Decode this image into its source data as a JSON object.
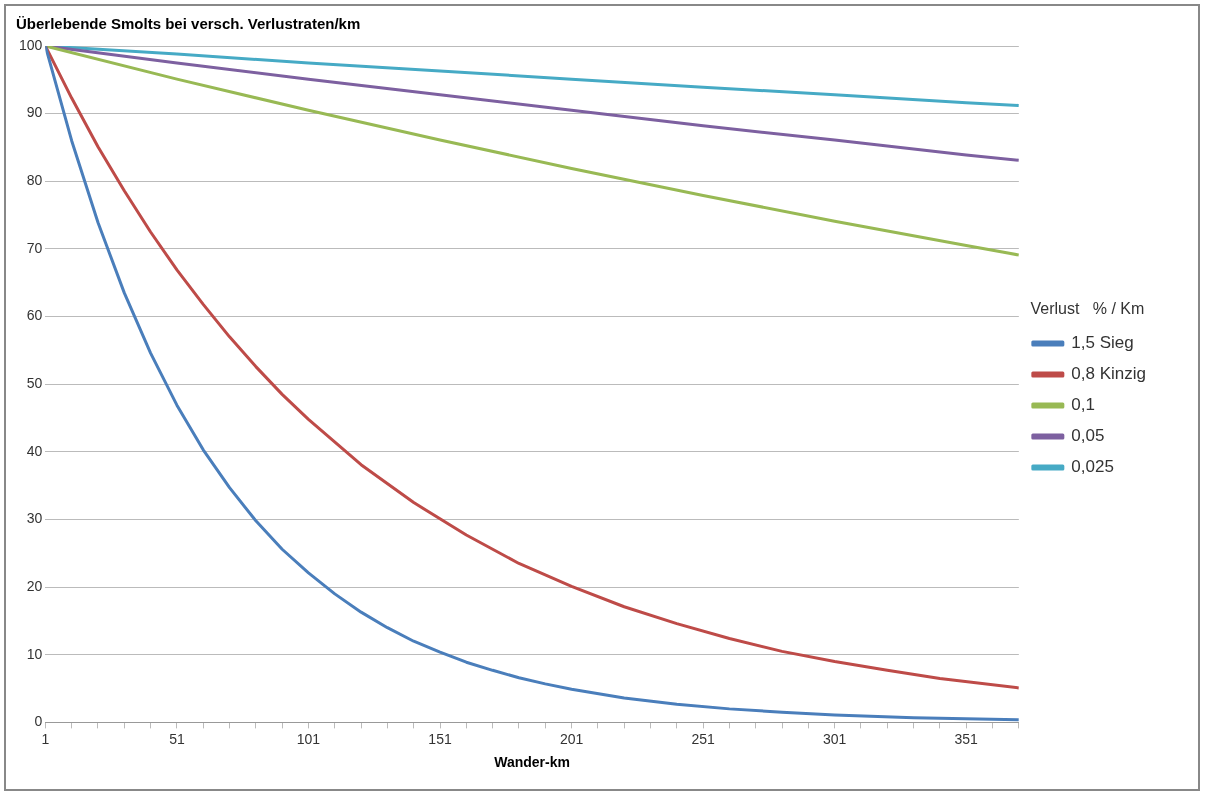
{
  "chart_data": {
    "type": "line",
    "title": "Überlebende Smolts bei versch. Verlustraten/km",
    "xlabel": "Wander-km",
    "xlim": [
      1,
      371
    ],
    "ylim": [
      0,
      100
    ],
    "xticks": [
      1,
      {
        "value": 11,
        "label": null
      },
      {
        "value": 21,
        "label": null
      },
      {
        "value": 31,
        "label": null
      },
      {
        "value": 41,
        "label": null
      },
      51,
      {
        "value": 61,
        "label": null
      },
      {
        "value": 71,
        "label": null
      },
      {
        "value": 81,
        "label": null
      },
      {
        "value": 91,
        "label": null
      },
      101,
      {
        "value": 111,
        "label": null
      },
      {
        "value": 121,
        "label": null
      },
      {
        "value": 131,
        "label": null
      },
      {
        "value": 141,
        "label": null
      },
      151,
      {
        "value": 161,
        "label": null
      },
      {
        "value": 171,
        "label": null
      },
      {
        "value": 181,
        "label": null
      },
      {
        "value": 191,
        "label": null
      },
      201,
      {
        "value": 211,
        "label": null
      },
      {
        "value": 221,
        "label": null
      },
      {
        "value": 231,
        "label": null
      },
      {
        "value": 241,
        "label": null
      },
      251,
      {
        "value": 261,
        "label": null
      },
      {
        "value": 271,
        "label": null
      },
      {
        "value": 281,
        "label": null
      },
      {
        "value": 291,
        "label": null
      },
      301,
      {
        "value": 311,
        "label": null
      },
      {
        "value": 321,
        "label": null
      },
      {
        "value": 331,
        "label": null
      },
      {
        "value": 341,
        "label": null
      },
      351,
      {
        "value": 361,
        "label": null
      },
      {
        "value": 371,
        "label": null
      }
    ],
    "yticks": [
      0,
      10,
      20,
      30,
      40,
      50,
      60,
      70,
      80,
      90,
      100
    ],
    "grid": "y",
    "legend": "right",
    "legend_title": "Verlust   % / Km",
    "marker": "none",
    "line_style": "solid",
    "series": [
      {
        "name": "1,5 Sieg",
        "color": "#4a7ebb",
        "x": [
          1,
          11,
          21,
          31,
          41,
          51,
          61,
          71,
          81,
          91,
          101,
          111,
          121,
          131,
          141,
          151,
          161,
          171,
          181,
          191,
          201,
          221,
          241,
          261,
          281,
          301,
          331,
          371
        ],
        "values": [
          100,
          86.0,
          73.9,
          63.5,
          54.6,
          46.9,
          40.3,
          34.7,
          29.8,
          25.6,
          22.1,
          19.0,
          16.3,
          14.0,
          12.0,
          10.4,
          8.9,
          7.7,
          6.6,
          5.7,
          4.9,
          3.6,
          2.7,
          2.0,
          1.5,
          1.1,
          0.7,
          0.4
        ]
      },
      {
        "name": "0,8 Kinzig",
        "color": "#be4b48",
        "x": [
          1,
          11,
          21,
          31,
          41,
          51,
          61,
          71,
          81,
          91,
          101,
          121,
          141,
          161,
          181,
          201,
          221,
          241,
          261,
          281,
          301,
          321,
          341,
          371
        ],
        "values": [
          100,
          92.3,
          85.1,
          78.6,
          72.5,
          66.9,
          61.8,
          57.0,
          52.6,
          48.5,
          44.8,
          38.1,
          32.5,
          27.7,
          23.5,
          20.1,
          17.1,
          14.6,
          12.4,
          10.5,
          9.0,
          7.7,
          6.5,
          5.1
        ]
      },
      {
        "name": "0,1",
        "color": "#98b954",
        "x": [
          1,
          51,
          101,
          151,
          201,
          251,
          301,
          351,
          371
        ],
        "values": [
          100,
          95.1,
          90.5,
          86.1,
          81.9,
          77.9,
          74.1,
          70.5,
          69.1
        ]
      },
      {
        "name": "0,05",
        "color": "#7d60a0",
        "x": [
          1,
          51,
          101,
          151,
          201,
          251,
          301,
          351,
          371
        ],
        "values": [
          100,
          97.5,
          95.1,
          92.8,
          90.5,
          88.2,
          86.1,
          83.9,
          83.1
        ]
      },
      {
        "name": "0,025",
        "color": "#46aac5",
        "x": [
          1,
          51,
          101,
          151,
          201,
          251,
          301,
          351,
          371
        ],
        "values": [
          100,
          98.8,
          97.5,
          96.3,
          95.1,
          93.9,
          92.8,
          91.6,
          91.2
        ]
      }
    ]
  }
}
